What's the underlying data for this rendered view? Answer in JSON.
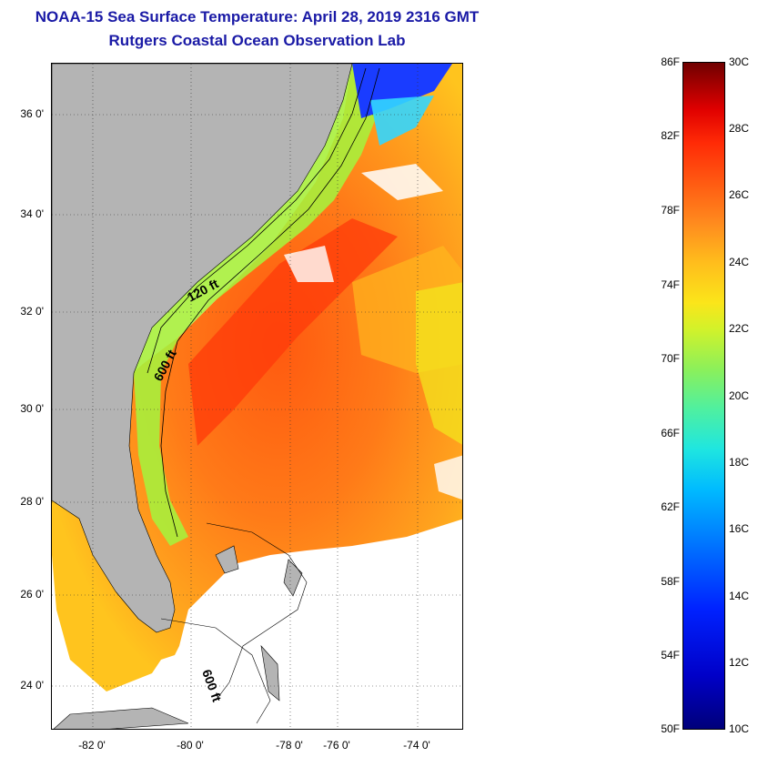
{
  "title": {
    "line1": "NOAA-15 Sea Surface Temperature:  April 28, 2019 2316 GMT",
    "line2": "Rutgers Coastal Ocean Observation Lab"
  },
  "map": {
    "lat_labels": [
      "36 0'",
      "34 0'",
      "32 0'",
      "30 0'",
      "28 0'",
      "26 0'",
      "24 0'"
    ],
    "lon_labels": [
      "-82 0'",
      "-80 0'",
      "-78 0'",
      "-76 0'",
      "-74 0'"
    ],
    "contour_labels": [
      "120 ft",
      "600 ft",
      "600 ft"
    ]
  },
  "colorbar": {
    "fahrenheit_labels": [
      "86F",
      "82F",
      "78F",
      "74F",
      "70F",
      "66F",
      "62F",
      "58F",
      "54F",
      "50F"
    ],
    "celsius_labels": [
      "30C",
      "28C",
      "26C",
      "24C",
      "22C",
      "20C",
      "18C",
      "16C",
      "14C",
      "12C",
      "10C"
    ]
  },
  "colors": {
    "title": "#1a1aa6",
    "land": "#b4b4b4",
    "no_data": "#ffffff"
  }
}
